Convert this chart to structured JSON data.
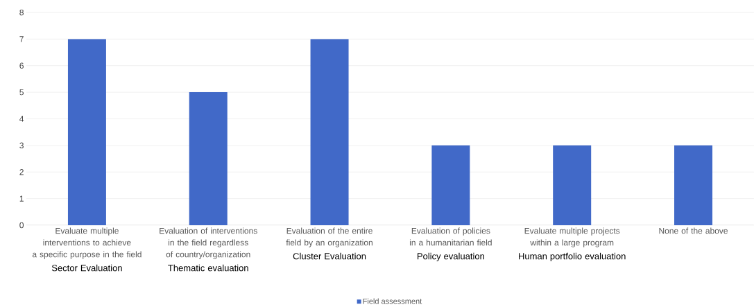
{
  "chart_data": {
    "type": "bar",
    "categories": [
      "Evaluate multiple interventions to achieve a specific purpose in the field",
      "Evaluation of interventions in the field regardless of country/organization",
      "Evaluation of the entire field by an organization",
      "Evaluation of policies in a humanitarian field",
      "Evaluate multiple projects within a large program",
      "None of the above"
    ],
    "series": [
      {
        "name": "Field assessment",
        "color": "#4169c8",
        "values": [
          7,
          5,
          7,
          3,
          3,
          3
        ]
      }
    ],
    "annotations": [
      "Sector Evaluation",
      "Thematic evaluation",
      "Cluster Evaluation",
      "Policy evaluation",
      "Human portfolio evaluation"
    ],
    "ylim": [
      0,
      8
    ],
    "yticks": [
      0,
      1,
      2,
      3,
      4,
      5,
      6,
      7,
      8
    ],
    "grid": "y",
    "legend": "bottom"
  }
}
